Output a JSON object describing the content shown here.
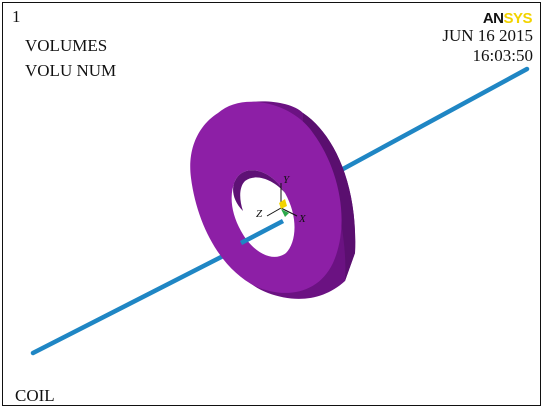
{
  "window": {
    "number": "1"
  },
  "legend": {
    "line1": "VOLUMES",
    "line2": "VOLU NUM"
  },
  "logo": {
    "part1": "AN",
    "part2": "SYS"
  },
  "date": "JUN 16 2015",
  "time": "16:03:50",
  "footer": {
    "title": "COIL"
  },
  "triad": {
    "x": "X",
    "y": "Y",
    "z": "Z"
  },
  "colors": {
    "volume": "#8d1fa6",
    "volume_shade": "#6b1282",
    "rod": "#1f86c4",
    "logo_accent": "#f2d300"
  },
  "icons": [
    "coordinate-triad-icon"
  ]
}
